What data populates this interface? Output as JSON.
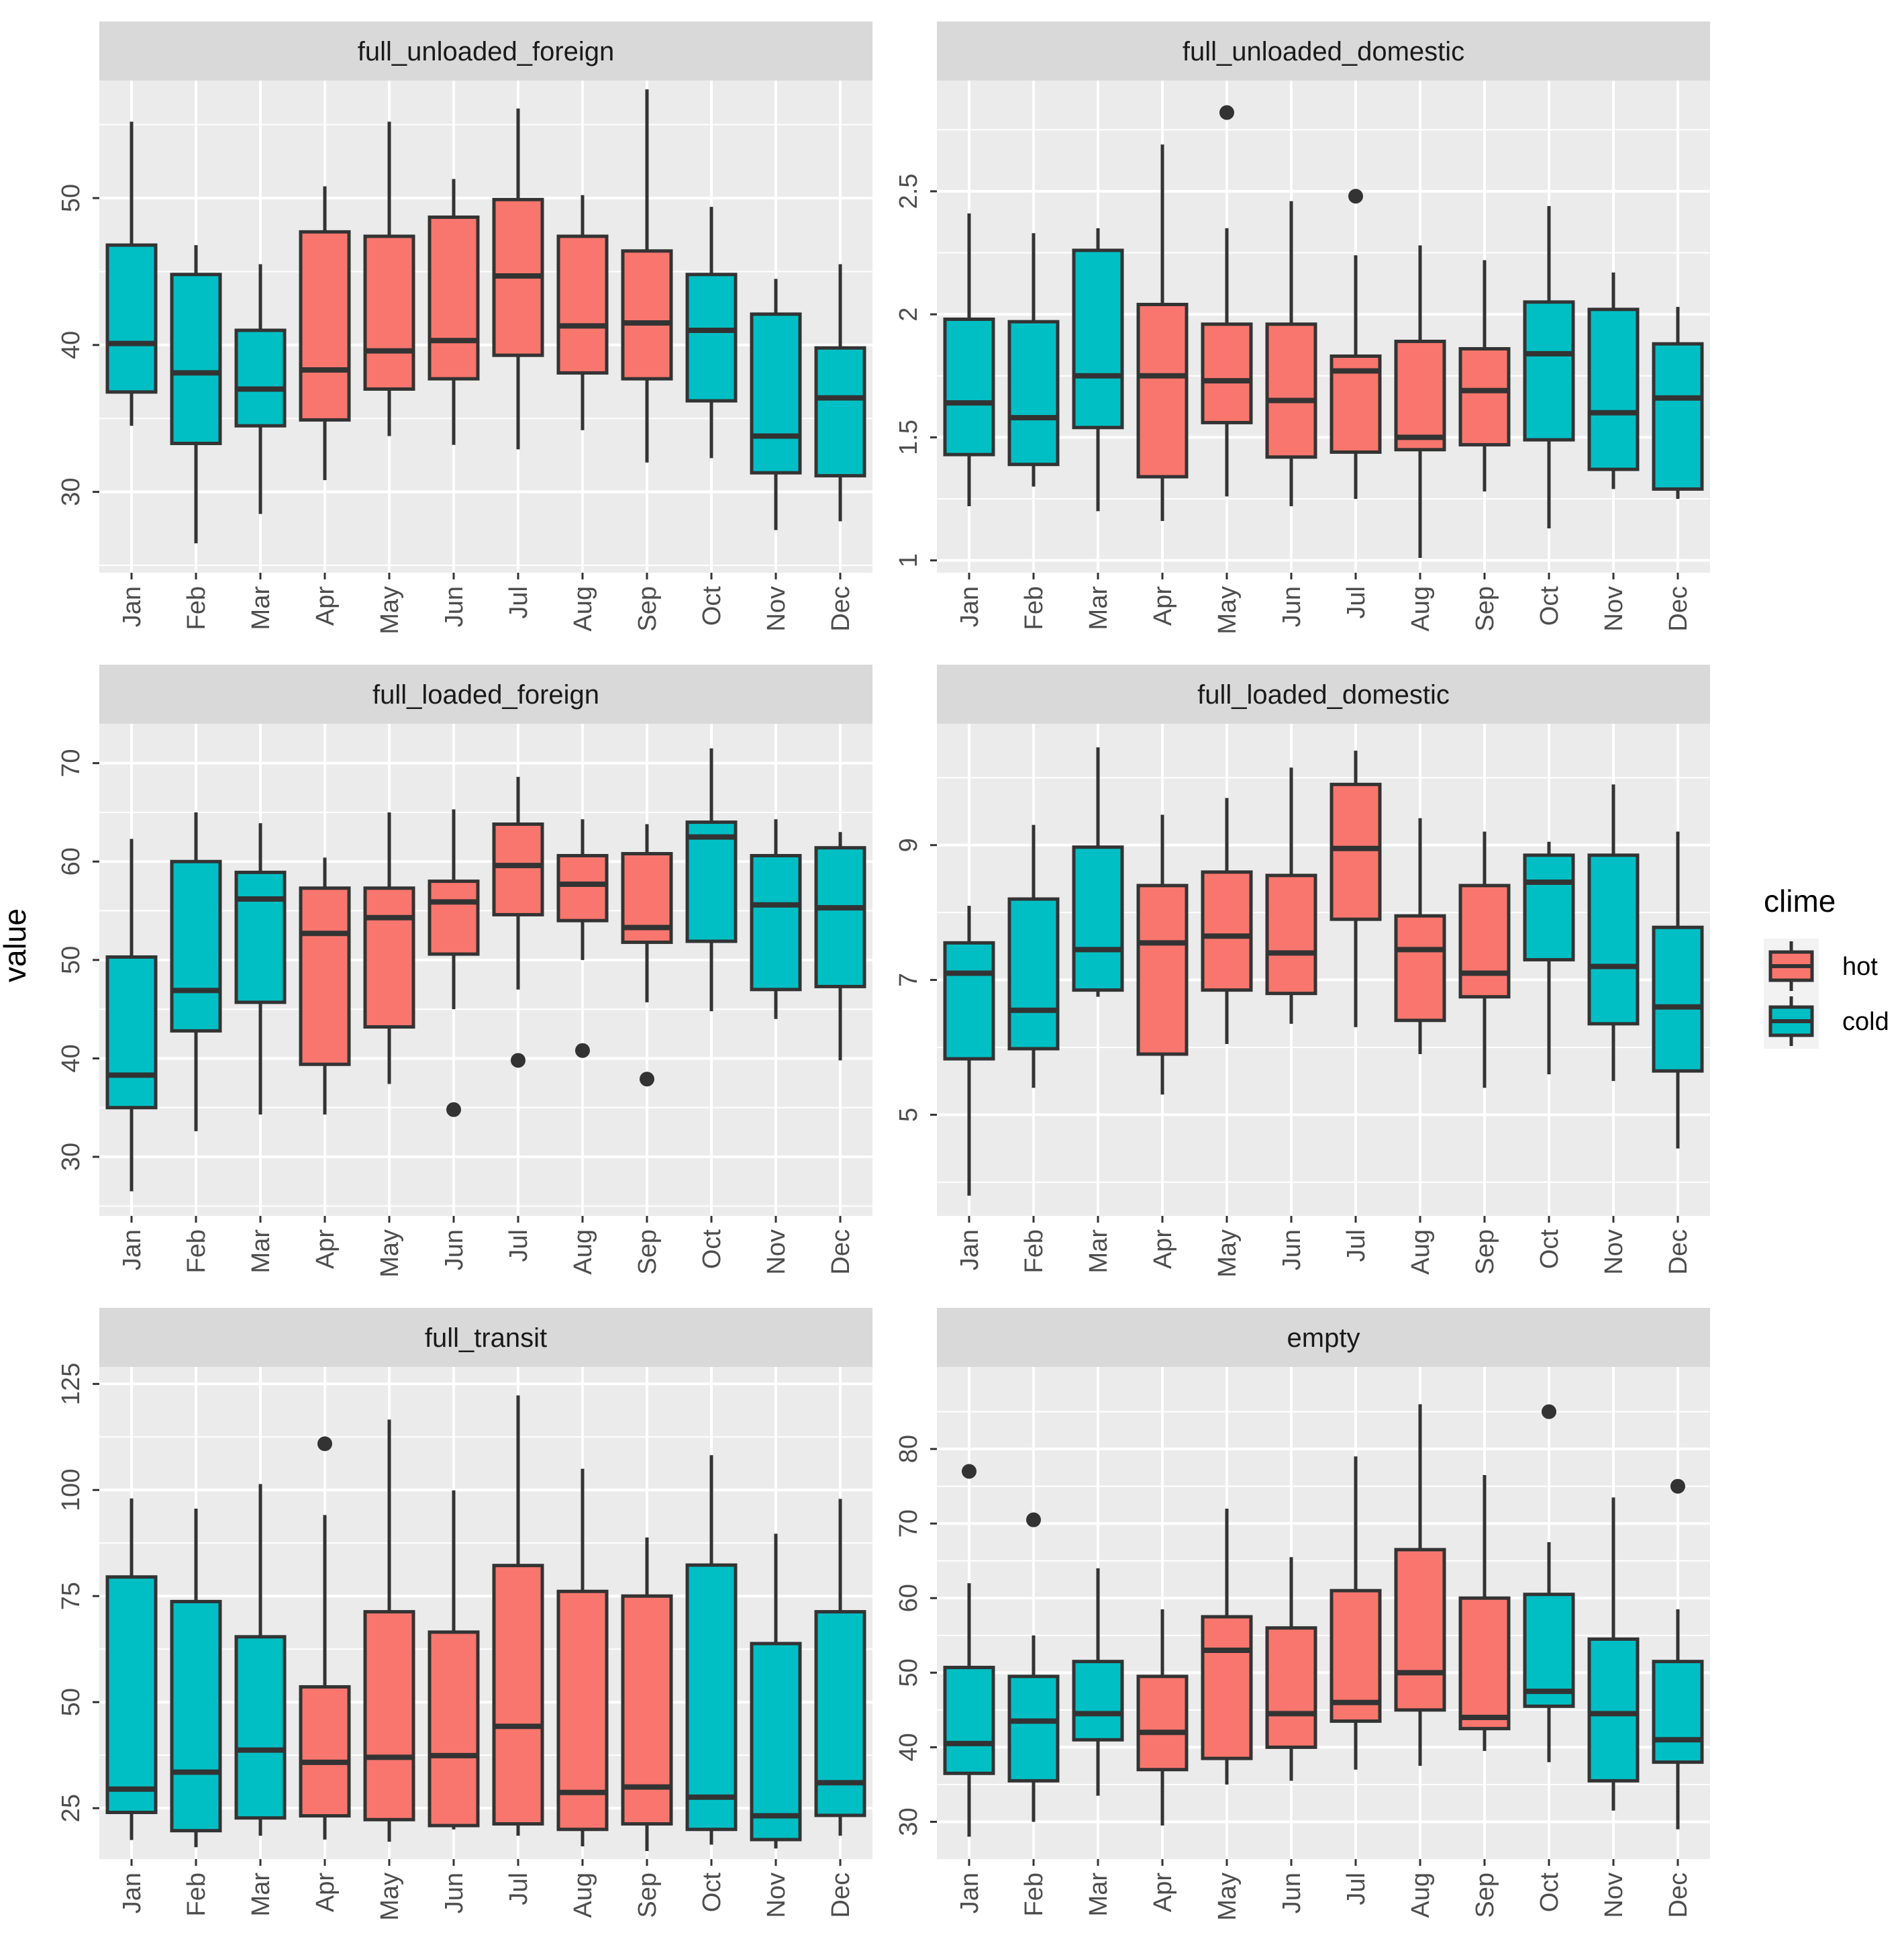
{
  "chart_data": {
    "type": "boxplot",
    "ylabel": "value",
    "months": [
      "Jan",
      "Feb",
      "Mar",
      "Apr",
      "May",
      "Jun",
      "Jul",
      "Aug",
      "Sep",
      "Oct",
      "Nov",
      "Dec"
    ],
    "clime_by_month": [
      "cold",
      "cold",
      "cold",
      "hot",
      "hot",
      "hot",
      "hot",
      "hot",
      "hot",
      "cold",
      "cold",
      "cold"
    ],
    "legend": {
      "title": "clime",
      "items": [
        {
          "label": "hot",
          "color": "#F8766D"
        },
        {
          "label": "cold",
          "color": "#00BFC4"
        }
      ]
    },
    "panels": [
      {
        "title": "full_unloaded_foreign",
        "ylim": [
          24.5,
          58
        ],
        "yticks": [
          30,
          40,
          50
        ],
        "clime": [
          "cold",
          "cold",
          "cold",
          "hot",
          "hot",
          "hot",
          "hot",
          "hot",
          "hot",
          "cold",
          "cold",
          "cold"
        ],
        "boxes": [
          {
            "min": 34.5,
            "q1": 36.8,
            "median": 40.1,
            "q3": 46.8,
            "max": 55.2,
            "outliers": []
          },
          {
            "min": 26.5,
            "q1": 33.3,
            "median": 38.1,
            "q3": 44.8,
            "max": 46.8,
            "outliers": []
          },
          {
            "min": 28.5,
            "q1": 34.5,
            "median": 37.0,
            "q3": 41.0,
            "max": 45.5,
            "outliers": []
          },
          {
            "min": 30.8,
            "q1": 34.9,
            "median": 38.3,
            "q3": 47.7,
            "max": 50.8,
            "outliers": []
          },
          {
            "min": 33.8,
            "q1": 37.0,
            "median": 39.6,
            "q3": 47.4,
            "max": 55.2,
            "outliers": []
          },
          {
            "min": 33.2,
            "q1": 37.7,
            "median": 40.3,
            "q3": 48.7,
            "max": 51.3,
            "outliers": []
          },
          {
            "min": 32.9,
            "q1": 39.3,
            "median": 44.7,
            "q3": 49.9,
            "max": 56.1,
            "outliers": []
          },
          {
            "min": 34.2,
            "q1": 38.1,
            "median": 41.3,
            "q3": 47.4,
            "max": 50.2,
            "outliers": []
          },
          {
            "min": 32.0,
            "q1": 37.7,
            "median": 41.5,
            "q3": 46.4,
            "max": 57.4,
            "outliers": []
          },
          {
            "min": 32.3,
            "q1": 36.2,
            "median": 41.0,
            "q3": 44.8,
            "max": 49.4,
            "outliers": []
          },
          {
            "min": 27.4,
            "q1": 31.3,
            "median": 33.8,
            "q3": 42.1,
            "max": 44.5,
            "outliers": []
          },
          {
            "min": 28.0,
            "q1": 31.1,
            "median": 36.4,
            "q3": 39.8,
            "max": 45.5,
            "outliers": []
          }
        ]
      },
      {
        "title": "full_unloaded_domestic",
        "ylim": [
          0.95,
          2.95
        ],
        "yticks": [
          1.0,
          1.5,
          2.0,
          2.5
        ],
        "clime": [
          "cold",
          "cold",
          "cold",
          "hot",
          "hot",
          "hot",
          "hot",
          "hot",
          "hot",
          "cold",
          "cold",
          "cold"
        ],
        "boxes": [
          {
            "min": 1.22,
            "q1": 1.43,
            "median": 1.64,
            "q3": 1.98,
            "max": 2.41,
            "outliers": []
          },
          {
            "min": 1.3,
            "q1": 1.39,
            "median": 1.58,
            "q3": 1.97,
            "max": 2.33,
            "outliers": []
          },
          {
            "min": 1.2,
            "q1": 1.54,
            "median": 1.75,
            "q3": 2.26,
            "max": 2.35,
            "outliers": []
          },
          {
            "min": 1.16,
            "q1": 1.34,
            "median": 1.75,
            "q3": 2.04,
            "max": 2.69,
            "outliers": []
          },
          {
            "min": 1.26,
            "q1": 1.56,
            "median": 1.73,
            "q3": 1.96,
            "max": 2.35,
            "outliers": [
              2.82
            ]
          },
          {
            "min": 1.22,
            "q1": 1.42,
            "median": 1.65,
            "q3": 1.96,
            "max": 2.46,
            "outliers": []
          },
          {
            "min": 1.25,
            "q1": 1.44,
            "median": 1.77,
            "q3": 1.83,
            "max": 2.24,
            "outliers": [
              2.48
            ]
          },
          {
            "min": 1.01,
            "q1": 1.45,
            "median": 1.5,
            "q3": 1.89,
            "max": 2.28,
            "outliers": []
          },
          {
            "min": 1.28,
            "q1": 1.47,
            "median": 1.69,
            "q3": 1.86,
            "max": 2.22,
            "outliers": []
          },
          {
            "min": 1.13,
            "q1": 1.49,
            "median": 1.84,
            "q3": 2.05,
            "max": 2.44,
            "outliers": []
          },
          {
            "min": 1.29,
            "q1": 1.37,
            "median": 1.6,
            "q3": 2.02,
            "max": 2.17,
            "outliers": []
          },
          {
            "min": 1.25,
            "q1": 1.29,
            "median": 1.66,
            "q3": 1.88,
            "max": 2.03,
            "outliers": []
          }
        ]
      },
      {
        "title": "full_loaded_foreign",
        "ylim": [
          24,
          74
        ],
        "yticks": [
          30,
          40,
          50,
          60,
          70
        ],
        "clime": [
          "cold",
          "cold",
          "cold",
          "hot",
          "hot",
          "hot",
          "hot",
          "hot",
          "hot",
          "cold",
          "cold",
          "cold"
        ],
        "boxes": [
          {
            "min": 26.5,
            "q1": 35.0,
            "median": 38.3,
            "q3": 50.3,
            "max": 62.3,
            "outliers": []
          },
          {
            "min": 32.6,
            "q1": 42.8,
            "median": 46.9,
            "q3": 60.0,
            "max": 65.0,
            "outliers": []
          },
          {
            "min": 34.3,
            "q1": 45.7,
            "median": 56.2,
            "q3": 58.9,
            "max": 63.9,
            "outliers": []
          },
          {
            "min": 34.3,
            "q1": 39.4,
            "median": 52.7,
            "q3": 57.3,
            "max": 60.4,
            "outliers": []
          },
          {
            "min": 37.4,
            "q1": 43.2,
            "median": 54.3,
            "q3": 57.3,
            "max": 65.0,
            "outliers": []
          },
          {
            "min": 45.0,
            "q1": 50.6,
            "median": 55.9,
            "q3": 58.0,
            "max": 65.3,
            "outliers": [
              34.8
            ]
          },
          {
            "min": 47.0,
            "q1": 54.6,
            "median": 59.6,
            "q3": 63.8,
            "max": 68.6,
            "outliers": [
              39.8
            ]
          },
          {
            "min": 50.0,
            "q1": 54.0,
            "median": 57.7,
            "q3": 60.6,
            "max": 64.3,
            "outliers": [
              40.8
            ]
          },
          {
            "min": 45.7,
            "q1": 51.8,
            "median": 53.3,
            "q3": 60.8,
            "max": 63.8,
            "outliers": [
              37.9
            ]
          },
          {
            "min": 44.8,
            "q1": 51.9,
            "median": 62.5,
            "q3": 64.0,
            "max": 71.5,
            "outliers": []
          },
          {
            "min": 44.0,
            "q1": 47.0,
            "median": 55.6,
            "q3": 60.6,
            "max": 64.3,
            "outliers": []
          },
          {
            "min": 39.8,
            "q1": 47.3,
            "median": 55.3,
            "q3": 61.4,
            "max": 63.0,
            "outliers": []
          }
        ]
      },
      {
        "title": "full_loaded_domestic",
        "ylim": [
          3.5,
          10.8
        ],
        "yticks": [
          5,
          7,
          9
        ],
        "clime": [
          "cold",
          "cold",
          "cold",
          "hot",
          "hot",
          "hot",
          "hot",
          "hot",
          "hot",
          "cold",
          "cold",
          "cold"
        ],
        "boxes": [
          {
            "min": 3.8,
            "q1": 5.83,
            "median": 7.1,
            "q3": 7.55,
            "max": 8.1,
            "outliers": []
          },
          {
            "min": 5.4,
            "q1": 5.98,
            "median": 6.55,
            "q3": 8.2,
            "max": 9.3,
            "outliers": []
          },
          {
            "min": 6.75,
            "q1": 6.85,
            "median": 7.45,
            "q3": 8.97,
            "max": 10.45,
            "outliers": []
          },
          {
            "min": 5.3,
            "q1": 5.9,
            "median": 7.55,
            "q3": 8.4,
            "max": 9.45,
            "outliers": []
          },
          {
            "min": 6.05,
            "q1": 6.85,
            "median": 7.65,
            "q3": 8.6,
            "max": 9.7,
            "outliers": []
          },
          {
            "min": 6.35,
            "q1": 6.8,
            "median": 7.4,
            "q3": 8.55,
            "max": 10.15,
            "outliers": []
          },
          {
            "min": 6.3,
            "q1": 7.9,
            "median": 8.95,
            "q3": 9.9,
            "max": 10.4,
            "outliers": []
          },
          {
            "min": 5.9,
            "q1": 6.4,
            "median": 7.45,
            "q3": 7.95,
            "max": 9.4,
            "outliers": []
          },
          {
            "min": 5.4,
            "q1": 6.75,
            "median": 7.1,
            "q3": 8.4,
            "max": 9.2,
            "outliers": []
          },
          {
            "min": 5.6,
            "q1": 7.3,
            "median": 8.45,
            "q3": 8.85,
            "max": 9.05,
            "outliers": []
          },
          {
            "min": 5.5,
            "q1": 6.35,
            "median": 7.2,
            "q3": 8.85,
            "max": 9.9,
            "outliers": []
          },
          {
            "min": 4.5,
            "q1": 5.65,
            "median": 6.6,
            "q3": 7.78,
            "max": 9.2,
            "outliers": []
          }
        ]
      },
      {
        "title": "full_transit",
        "ylim": [
          13,
          129
        ],
        "yticks": [
          25,
          50,
          75,
          100,
          125
        ],
        "clime": [
          "cold",
          "cold",
          "cold",
          "hot",
          "hot",
          "hot",
          "hot",
          "hot",
          "hot",
          "cold",
          "cold",
          "cold"
        ],
        "boxes": [
          {
            "min": 17.5,
            "q1": 24.0,
            "median": 29.5,
            "q3": 79.5,
            "max": 98.0,
            "outliers": []
          },
          {
            "min": 15.8,
            "q1": 19.7,
            "median": 33.5,
            "q3": 73.7,
            "max": 95.6,
            "outliers": []
          },
          {
            "min": 18.5,
            "q1": 22.7,
            "median": 38.7,
            "q3": 65.4,
            "max": 101.4,
            "outliers": []
          },
          {
            "min": 17.6,
            "q1": 23.2,
            "median": 35.8,
            "q3": 53.6,
            "max": 94.1,
            "outliers": [
              110.9
            ]
          },
          {
            "min": 17.1,
            "q1": 22.3,
            "median": 37.0,
            "q3": 71.3,
            "max": 116.6,
            "outliers": []
          },
          {
            "min": 20.0,
            "q1": 20.9,
            "median": 37.4,
            "q3": 66.5,
            "max": 99.9,
            "outliers": []
          },
          {
            "min": 18.5,
            "q1": 21.3,
            "median": 44.3,
            "q3": 82.2,
            "max": 122.3,
            "outliers": []
          },
          {
            "min": 16.0,
            "q1": 20.0,
            "median": 28.7,
            "q3": 76.1,
            "max": 105.0,
            "outliers": []
          },
          {
            "min": 14.9,
            "q1": 21.3,
            "median": 30.0,
            "q3": 75.0,
            "max": 88.8,
            "outliers": []
          },
          {
            "min": 16.4,
            "q1": 20.0,
            "median": 27.6,
            "q3": 82.3,
            "max": 108.2,
            "outliers": []
          },
          {
            "min": 15.5,
            "q1": 17.6,
            "median": 23.2,
            "q3": 63.8,
            "max": 89.7,
            "outliers": []
          },
          {
            "min": 18.5,
            "q1": 23.3,
            "median": 31.0,
            "q3": 71.3,
            "max": 97.9,
            "outliers": []
          }
        ]
      },
      {
        "title": "empty",
        "ylim": [
          25,
          91
        ],
        "yticks": [
          30,
          40,
          50,
          60,
          70,
          80
        ],
        "clime": [
          "cold",
          "cold",
          "cold",
          "hot",
          "hot",
          "hot",
          "hot",
          "hot",
          "hot",
          "cold",
          "cold",
          "cold"
        ],
        "boxes": [
          {
            "min": 28.0,
            "q1": 36.5,
            "median": 40.5,
            "q3": 50.7,
            "max": 62.0,
            "outliers": [
              77.0
            ]
          },
          {
            "min": 30.0,
            "q1": 35.5,
            "median": 43.5,
            "q3": 49.5,
            "max": 55.0,
            "outliers": [
              70.5
            ]
          },
          {
            "min": 33.5,
            "q1": 41.0,
            "median": 44.5,
            "q3": 51.5,
            "max": 64.0,
            "outliers": []
          },
          {
            "min": 29.5,
            "q1": 37.0,
            "median": 42.0,
            "q3": 49.5,
            "max": 58.5,
            "outliers": []
          },
          {
            "min": 35.0,
            "q1": 38.5,
            "median": 53.0,
            "q3": 57.5,
            "max": 72.0,
            "outliers": []
          },
          {
            "min": 35.5,
            "q1": 40.0,
            "median": 44.5,
            "q3": 56.0,
            "max": 65.5,
            "outliers": []
          },
          {
            "min": 37.0,
            "q1": 43.5,
            "median": 46.0,
            "q3": 61.0,
            "max": 79.0,
            "outliers": []
          },
          {
            "min": 37.5,
            "q1": 45.0,
            "median": 50.0,
            "q3": 66.5,
            "max": 86.0,
            "outliers": []
          },
          {
            "min": 39.5,
            "q1": 42.5,
            "median": 44.0,
            "q3": 60.0,
            "max": 76.5,
            "outliers": []
          },
          {
            "min": 38.0,
            "q1": 45.5,
            "median": 47.5,
            "q3": 60.5,
            "max": 67.5,
            "outliers": [
              85.0
            ]
          },
          {
            "min": 31.5,
            "q1": 35.5,
            "median": 44.5,
            "q3": 54.5,
            "max": 73.5,
            "outliers": []
          },
          {
            "min": 29.0,
            "q1": 38.0,
            "median": 41.0,
            "q3": 51.5,
            "max": 58.5,
            "outliers": [
              75.0
            ]
          }
        ]
      }
    ]
  }
}
